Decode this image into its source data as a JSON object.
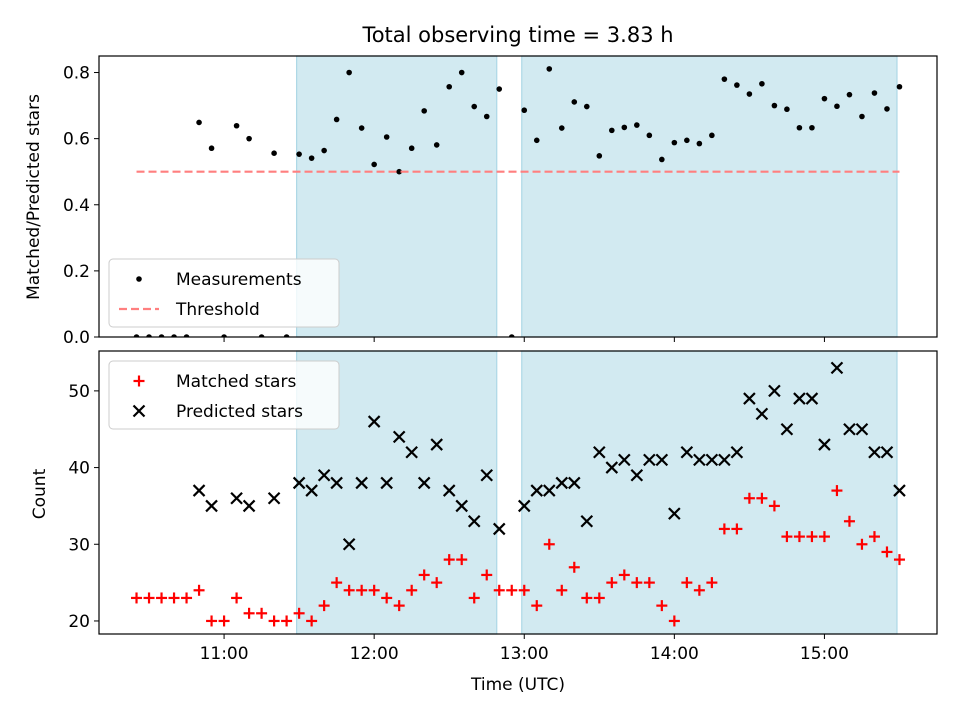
{
  "chart_data": {
    "title": "Total observing time = 3.83 h",
    "xlabel": "Time (UTC)",
    "x_ticks": [
      "11:00",
      "12:00",
      "13:00",
      "14:00",
      "15:00"
    ],
    "shaded_intervals": [
      [
        "11:29",
        "12:49"
      ],
      [
        "12:59",
        "15:29"
      ]
    ],
    "shade_color": "#add8e6",
    "panels": [
      {
        "type": "scatter",
        "ylabel": "Matched/Predicted stars",
        "ylim": [
          0,
          0.85
        ],
        "y_ticks": [
          "0.0",
          "0.2",
          "0.4",
          "0.6",
          "0.8"
        ],
        "legend_position": "lower-left",
        "series": [
          {
            "name": "Measurements",
            "marker": "dot",
            "color": "#000000",
            "points": [
              [
                "10:25",
                0.0
              ],
              [
                "10:30",
                0.0
              ],
              [
                "10:35",
                0.0
              ],
              [
                "10:40",
                0.0
              ],
              [
                "10:45",
                0.0
              ],
              [
                "10:50",
                0.649
              ],
              [
                "10:55",
                0.571
              ],
              [
                "11:00",
                0.0
              ],
              [
                "11:05",
                0.639
              ],
              [
                "11:10",
                0.6
              ],
              [
                "11:15",
                0.0
              ],
              [
                "11:20",
                0.556
              ],
              [
                "11:25",
                0.0
              ],
              [
                "11:30",
                0.553
              ],
              [
                "11:35",
                0.541
              ],
              [
                "11:40",
                0.564
              ],
              [
                "11:45",
                0.658
              ],
              [
                "11:50",
                0.8
              ],
              [
                "11:55",
                0.632
              ],
              [
                "12:00",
                0.522
              ],
              [
                "12:05",
                0.605
              ],
              [
                "12:10",
                0.5
              ],
              [
                "12:15",
                0.571
              ],
              [
                "12:20",
                0.684
              ],
              [
                "12:25",
                0.581
              ],
              [
                "12:30",
                0.757
              ],
              [
                "12:35",
                0.8
              ],
              [
                "12:40",
                0.697
              ],
              [
                "12:45",
                0.667
              ],
              [
                "12:50",
                0.75
              ],
              [
                "12:55",
                0.0
              ],
              [
                "13:00",
                0.686
              ],
              [
                "13:05",
                0.595
              ],
              [
                "13:10",
                0.811
              ],
              [
                "13:15",
                0.632
              ],
              [
                "13:20",
                0.711
              ],
              [
                "13:25",
                0.697
              ],
              [
                "13:30",
                0.548
              ],
              [
                "13:35",
                0.625
              ],
              [
                "13:40",
                0.634
              ],
              [
                "13:45",
                0.641
              ],
              [
                "13:50",
                0.61
              ],
              [
                "13:55",
                0.537
              ],
              [
                "14:00",
                0.588
              ],
              [
                "14:05",
                0.595
              ],
              [
                "14:10",
                0.585
              ],
              [
                "14:15",
                0.61
              ],
              [
                "14:20",
                0.78
              ],
              [
                "14:25",
                0.762
              ],
              [
                "14:30",
                0.735
              ],
              [
                "14:35",
                0.766
              ],
              [
                "14:40",
                0.7
              ],
              [
                "14:45",
                0.689
              ],
              [
                "14:50",
                0.633
              ],
              [
                "14:55",
                0.633
              ],
              [
                "15:00",
                0.721
              ],
              [
                "15:05",
                0.698
              ],
              [
                "15:10",
                0.733
              ],
              [
                "15:15",
                0.667
              ],
              [
                "15:20",
                0.738
              ],
              [
                "15:25",
                0.69
              ],
              [
                "15:30",
                0.757
              ]
            ]
          },
          {
            "name": "Threshold",
            "marker": "dashed-line",
            "color": "#ff7f7f",
            "points": [
              [
                "10:25",
                0.5
              ],
              [
                "15:30",
                0.5
              ]
            ]
          }
        ]
      },
      {
        "type": "scatter",
        "ylabel": "Count",
        "ylim": [
          18.3,
          55.2
        ],
        "y_ticks": [
          "20",
          "30",
          "40",
          "50"
        ],
        "legend_position": "upper-left",
        "series": [
          {
            "name": "Matched stars",
            "marker": "plus",
            "color": "#ff0000",
            "points": [
              [
                "10:25",
                23
              ],
              [
                "10:30",
                23
              ],
              [
                "10:35",
                23
              ],
              [
                "10:40",
                23
              ],
              [
                "10:45",
                23
              ],
              [
                "10:50",
                24
              ],
              [
                "10:55",
                20
              ],
              [
                "11:00",
                20
              ],
              [
                "11:05",
                23
              ],
              [
                "11:10",
                21
              ],
              [
                "11:15",
                21
              ],
              [
                "11:20",
                20
              ],
              [
                "11:25",
                20
              ],
              [
                "11:30",
                21
              ],
              [
                "11:35",
                20
              ],
              [
                "11:40",
                22
              ],
              [
                "11:45",
                25
              ],
              [
                "11:50",
                24
              ],
              [
                "11:55",
                24
              ],
              [
                "12:00",
                24
              ],
              [
                "12:05",
                23
              ],
              [
                "12:10",
                22
              ],
              [
                "12:15",
                24
              ],
              [
                "12:20",
                26
              ],
              [
                "12:25",
                25
              ],
              [
                "12:30",
                28
              ],
              [
                "12:35",
                28
              ],
              [
                "12:40",
                23
              ],
              [
                "12:45",
                26
              ],
              [
                "12:50",
                24
              ],
              [
                "12:55",
                24
              ],
              [
                "13:00",
                24
              ],
              [
                "13:05",
                22
              ],
              [
                "13:10",
                30
              ],
              [
                "13:15",
                24
              ],
              [
                "13:20",
                27
              ],
              [
                "13:25",
                23
              ],
              [
                "13:30",
                23
              ],
              [
                "13:35",
                25
              ],
              [
                "13:40",
                26
              ],
              [
                "13:45",
                25
              ],
              [
                "13:50",
                25
              ],
              [
                "13:55",
                22
              ],
              [
                "14:00",
                20
              ],
              [
                "14:05",
                25
              ],
              [
                "14:10",
                24
              ],
              [
                "14:15",
                25
              ],
              [
                "14:20",
                32
              ],
              [
                "14:25",
                32
              ],
              [
                "14:30",
                36
              ],
              [
                "14:35",
                36
              ],
              [
                "14:40",
                35
              ],
              [
                "14:45",
                31
              ],
              [
                "14:50",
                31
              ],
              [
                "14:55",
                31
              ],
              [
                "15:00",
                31
              ],
              [
                "15:05",
                37
              ],
              [
                "15:10",
                33
              ],
              [
                "15:15",
                30
              ],
              [
                "15:20",
                31
              ],
              [
                "15:25",
                29
              ],
              [
                "15:30",
                28
              ]
            ]
          },
          {
            "name": "Predicted stars",
            "marker": "x",
            "color": "#000000",
            "points": [
              [
                "10:50",
                37
              ],
              [
                "10:55",
                35
              ],
              [
                "11:05",
                36
              ],
              [
                "11:10",
                35
              ],
              [
                "11:20",
                36
              ],
              [
                "11:30",
                38
              ],
              [
                "11:35",
                37
              ],
              [
                "11:40",
                39
              ],
              [
                "11:45",
                38
              ],
              [
                "11:50",
                30
              ],
              [
                "11:55",
                38
              ],
              [
                "12:00",
                46
              ],
              [
                "12:05",
                38
              ],
              [
                "12:10",
                44
              ],
              [
                "12:15",
                42
              ],
              [
                "12:20",
                38
              ],
              [
                "12:25",
                43
              ],
              [
                "12:30",
                37
              ],
              [
                "12:35",
                35
              ],
              [
                "12:40",
                33
              ],
              [
                "12:45",
                39
              ],
              [
                "12:50",
                32
              ],
              [
                "13:00",
                35
              ],
              [
                "13:05",
                37
              ],
              [
                "13:10",
                37
              ],
              [
                "13:15",
                38
              ],
              [
                "13:20",
                38
              ],
              [
                "13:25",
                33
              ],
              [
                "13:30",
                42
              ],
              [
                "13:35",
                40
              ],
              [
                "13:40",
                41
              ],
              [
                "13:45",
                39
              ],
              [
                "13:50",
                41
              ],
              [
                "13:55",
                41
              ],
              [
                "14:00",
                34
              ],
              [
                "14:05",
                42
              ],
              [
                "14:10",
                41
              ],
              [
                "14:15",
                41
              ],
              [
                "14:20",
                41
              ],
              [
                "14:25",
                42
              ],
              [
                "14:30",
                49
              ],
              [
                "14:35",
                47
              ],
              [
                "14:40",
                50
              ],
              [
                "14:45",
                45
              ],
              [
                "14:50",
                49
              ],
              [
                "14:55",
                49
              ],
              [
                "15:00",
                43
              ],
              [
                "15:05",
                53
              ],
              [
                "15:10",
                45
              ],
              [
                "15:15",
                45
              ],
              [
                "15:20",
                42
              ],
              [
                "15:25",
                42
              ],
              [
                "15:30",
                37
              ]
            ]
          }
        ]
      }
    ]
  }
}
